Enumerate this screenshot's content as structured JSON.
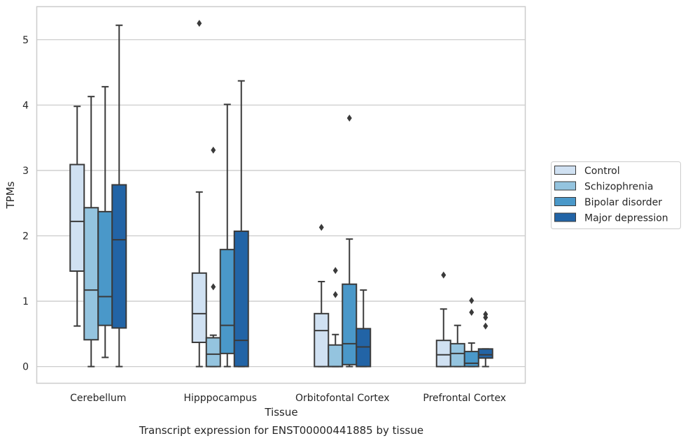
{
  "caption": "Transcript expression for ENST00000441885 by tissue",
  "chart_data": {
    "type": "box",
    "xlabel": "Tissue",
    "ylabel": "TPMs",
    "ylim": [
      -0.25,
      5.5
    ],
    "yticks": [
      0,
      1,
      2,
      3,
      4,
      5
    ],
    "grid": "horizontal",
    "legend_position": "right",
    "categories": [
      "Cerebellum",
      "Hipppocampus",
      "Orbitofontal Cortex",
      "Prefrontal Cortex"
    ],
    "series": [
      {
        "name": "Control",
        "color": "#d0e1f2",
        "boxes": [
          {
            "whisker_low": 0.62,
            "q1": 1.46,
            "median": 2.22,
            "q3": 3.09,
            "whisker_high": 3.98,
            "outliers": []
          },
          {
            "whisker_low": 0.0,
            "q1": 0.37,
            "median": 0.81,
            "q3": 1.43,
            "whisker_high": 2.67,
            "outliers": [
              5.25
            ]
          },
          {
            "whisker_low": 0.0,
            "q1": 0.0,
            "median": 0.55,
            "q3": 0.81,
            "whisker_high": 1.3,
            "outliers": [
              2.13
            ]
          },
          {
            "whisker_low": 0.0,
            "q1": 0.0,
            "median": 0.18,
            "q3": 0.4,
            "whisker_high": 0.88,
            "outliers": [
              1.4
            ]
          }
        ]
      },
      {
        "name": "Schizophrenia",
        "color": "#94c4df",
        "boxes": [
          {
            "whisker_low": 0.0,
            "q1": 0.41,
            "median": 1.17,
            "q3": 2.43,
            "whisker_high": 4.13,
            "outliers": []
          },
          {
            "whisker_low": 0.0,
            "q1": 0.0,
            "median": 0.19,
            "q3": 0.44,
            "whisker_high": 0.48,
            "outliers": [
              1.22,
              3.31
            ]
          },
          {
            "whisker_low": 0.0,
            "q1": 0.0,
            "median": 0.0,
            "q3": 0.33,
            "whisker_high": 0.49,
            "outliers": [
              1.1,
              1.47
            ]
          },
          {
            "whisker_low": 0.0,
            "q1": 0.0,
            "median": 0.2,
            "q3": 0.35,
            "whisker_high": 0.63,
            "outliers": []
          }
        ]
      },
      {
        "name": "Bipolar disorder",
        "color": "#4a98c9",
        "boxes": [
          {
            "whisker_low": 0.14,
            "q1": 0.63,
            "median": 1.07,
            "q3": 2.37,
            "whisker_high": 4.28,
            "outliers": []
          },
          {
            "whisker_low": 0.0,
            "q1": 0.2,
            "median": 0.63,
            "q3": 1.79,
            "whisker_high": 4.01,
            "outliers": []
          },
          {
            "whisker_low": 0.0,
            "q1": 0.03,
            "median": 0.35,
            "q3": 1.26,
            "whisker_high": 1.95,
            "outliers": [
              3.8
            ]
          },
          {
            "whisker_low": 0.0,
            "q1": 0.0,
            "median": 0.05,
            "q3": 0.23,
            "whisker_high": 0.36,
            "outliers": [
              0.83,
              1.01
            ]
          }
        ]
      },
      {
        "name": "Major depression",
        "color": "#2264a6",
        "boxes": [
          {
            "whisker_low": 0.0,
            "q1": 0.59,
            "median": 1.94,
            "q3": 2.78,
            "whisker_high": 5.22,
            "outliers": []
          },
          {
            "whisker_low": 0.0,
            "q1": 0.0,
            "median": 0.4,
            "q3": 2.07,
            "whisker_high": 4.37,
            "outliers": []
          },
          {
            "whisker_low": 0.0,
            "q1": 0.0,
            "median": 0.3,
            "q3": 0.58,
            "whisker_high": 1.17,
            "outliers": []
          },
          {
            "whisker_low": 0.0,
            "q1": 0.13,
            "median": 0.18,
            "q3": 0.27,
            "whisker_high": 0.27,
            "outliers": [
              0.62,
              0.75,
              0.8
            ]
          }
        ]
      }
    ]
  }
}
